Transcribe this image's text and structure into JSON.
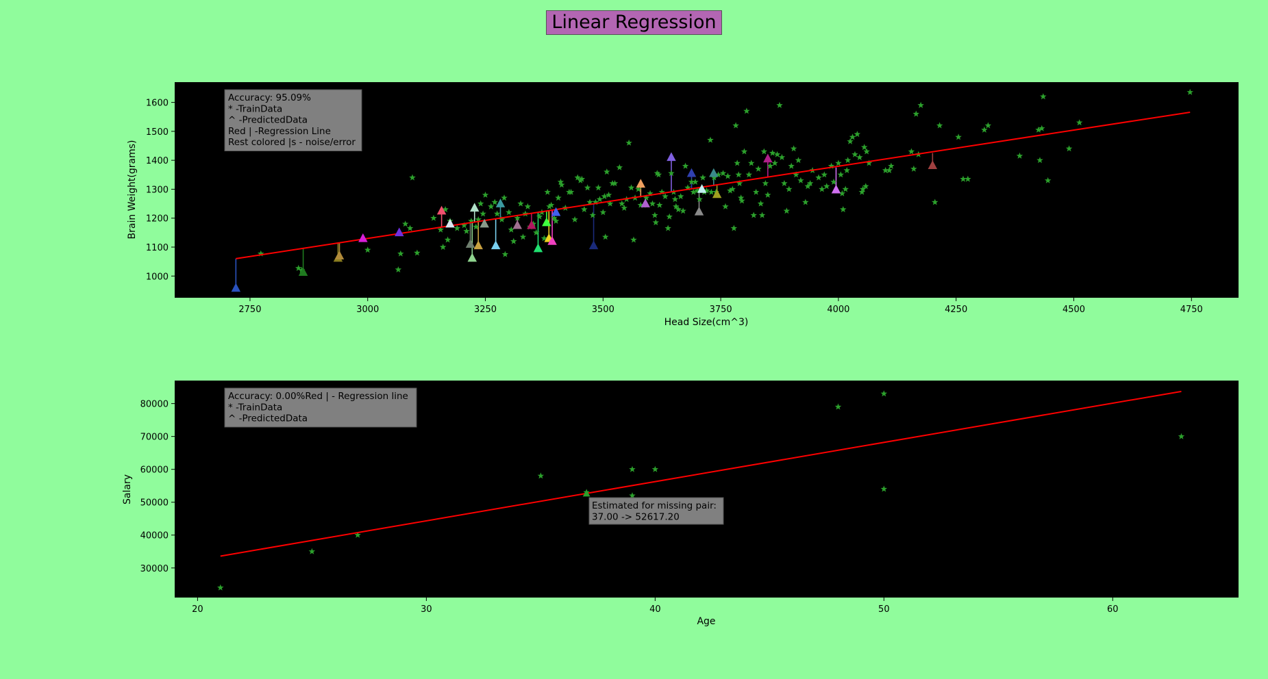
{
  "figure": {
    "title": "Linear Regression",
    "background": "#90fc9c",
    "title_box_color": "#b366b3"
  },
  "chart_data": [
    {
      "type": "scatter",
      "xlabel": "Head Size(cm^3)",
      "ylabel": "Brain Weight(grams)",
      "xlim": [
        2590,
        4850
      ],
      "ylim": [
        925,
        1670
      ],
      "xticks": [
        2750,
        3000,
        3250,
        3500,
        3750,
        4000,
        4250,
        4500,
        4750
      ],
      "yticks": [
        1000,
        1100,
        1200,
        1300,
        1400,
        1500,
        1600
      ],
      "plot_background": "#000000",
      "legend_position": "top-left",
      "legend_lines": [
        "Accuracy: 95.09%",
        "*  -TrainData",
        "^ -PredictedData",
        "Red | -Regression Line",
        "Rest colored |s - noise/error"
      ],
      "regression_line": {
        "color": "#ff0000",
        "points": [
          [
            2720,
            1060
          ],
          [
            4747,
            1566
          ]
        ]
      },
      "train_marker_color": "#2ca02c",
      "train": [
        [
          2773,
          1077
        ],
        [
          2853,
          1027
        ],
        [
          2860,
          1020
        ],
        [
          3000,
          1090
        ],
        [
          3070,
          1077
        ],
        [
          3065,
          1022
        ],
        [
          3080,
          1180
        ],
        [
          3090,
          1165
        ],
        [
          3095,
          1340
        ],
        [
          3105,
          1080
        ],
        [
          3140,
          1200
        ],
        [
          3155,
          1160
        ],
        [
          3160,
          1100
        ],
        [
          3165,
          1230
        ],
        [
          3170,
          1125
        ],
        [
          3175,
          1190
        ],
        [
          3190,
          1165
        ],
        [
          3205,
          1175
        ],
        [
          3210,
          1155
        ],
        [
          3220,
          1190
        ],
        [
          3230,
          1170
        ],
        [
          3235,
          1195
        ],
        [
          3240,
          1250
        ],
        [
          3245,
          1215
        ],
        [
          3250,
          1280
        ],
        [
          3262,
          1240
        ],
        [
          3270,
          1255
        ],
        [
          3275,
          1215
        ],
        [
          3285,
          1195
        ],
        [
          3290,
          1270
        ],
        [
          3292,
          1075
        ],
        [
          3300,
          1220
        ],
        [
          3305,
          1160
        ],
        [
          3310,
          1120
        ],
        [
          3318,
          1200
        ],
        [
          3325,
          1250
        ],
        [
          3330,
          1135
        ],
        [
          3335,
          1215
        ],
        [
          3340,
          1240
        ],
        [
          3345,
          1170
        ],
        [
          3352,
          1180
        ],
        [
          3358,
          1150
        ],
        [
          3365,
          1205
        ],
        [
          3370,
          1220
        ],
        [
          3375,
          1130
        ],
        [
          3382,
          1290
        ],
        [
          3386,
          1240
        ],
        [
          3390,
          1245
        ],
        [
          3396,
          1200
        ],
        [
          3400,
          1190
        ],
        [
          3405,
          1270
        ],
        [
          3410,
          1325
        ],
        [
          3412,
          1315
        ],
        [
          3420,
          1235
        ],
        [
          3428,
          1290
        ],
        [
          3432,
          1290
        ],
        [
          3440,
          1195
        ],
        [
          3446,
          1340
        ],
        [
          3452,
          1330
        ],
        [
          3455,
          1335
        ],
        [
          3460,
          1230
        ],
        [
          3467,
          1305
        ],
        [
          3472,
          1255
        ],
        [
          3478,
          1210
        ],
        [
          3484,
          1255
        ],
        [
          3490,
          1305
        ],
        [
          3493,
          1265
        ],
        [
          3500,
          1220
        ],
        [
          3503,
          1275
        ],
        [
          3505,
          1135
        ],
        [
          3508,
          1360
        ],
        [
          3512,
          1280
        ],
        [
          3515,
          1250
        ],
        [
          3520,
          1320
        ],
        [
          3525,
          1320
        ],
        [
          3535,
          1375
        ],
        [
          3540,
          1250
        ],
        [
          3545,
          1235
        ],
        [
          3550,
          1265
        ],
        [
          3555,
          1460
        ],
        [
          3560,
          1305
        ],
        [
          3565,
          1125
        ],
        [
          3568,
          1270
        ],
        [
          3575,
          1300
        ],
        [
          3580,
          1245
        ],
        [
          3586,
          1245
        ],
        [
          3592,
          1270
        ],
        [
          3600,
          1285
        ],
        [
          3605,
          1250
        ],
        [
          3610,
          1210
        ],
        [
          3612,
          1185
        ],
        [
          3615,
          1355
        ],
        [
          3618,
          1350
        ],
        [
          3620,
          1245
        ],
        [
          3625,
          1290
        ],
        [
          3632,
          1275
        ],
        [
          3638,
          1165
        ],
        [
          3641,
          1205
        ],
        [
          3645,
          1355
        ],
        [
          3650,
          1290
        ],
        [
          3653,
          1265
        ],
        [
          3655,
          1240
        ],
        [
          3660,
          1230
        ],
        [
          3665,
          1275
        ],
        [
          3670,
          1225
        ],
        [
          3675,
          1380
        ],
        [
          3680,
          1305
        ],
        [
          3688,
          1325
        ],
        [
          3692,
          1290
        ],
        [
          3696,
          1325
        ],
        [
          3700,
          1295
        ],
        [
          3705,
          1265
        ],
        [
          3712,
          1340
        ],
        [
          3715,
          1290
        ],
        [
          3720,
          1295
        ],
        [
          3728,
          1470
        ],
        [
          3730,
          1290
        ],
        [
          3736,
          1340
        ],
        [
          3740,
          1290
        ],
        [
          3745,
          1350
        ],
        [
          3755,
          1355
        ],
        [
          3760,
          1240
        ],
        [
          3765,
          1345
        ],
        [
          3770,
          1295
        ],
        [
          3775,
          1300
        ],
        [
          3778,
          1165
        ],
        [
          3782,
          1520
        ],
        [
          3785,
          1390
        ],
        [
          3788,
          1350
        ],
        [
          3790,
          1320
        ],
        [
          3793,
          1270
        ],
        [
          3795,
          1260
        ],
        [
          3800,
          1430
        ],
        [
          3805,
          1570
        ],
        [
          3810,
          1350
        ],
        [
          3815,
          1390
        ],
        [
          3820,
          1210
        ],
        [
          3825,
          1290
        ],
        [
          3830,
          1370
        ],
        [
          3835,
          1250
        ],
        [
          3838,
          1210
        ],
        [
          3842,
          1430
        ],
        [
          3845,
          1320
        ],
        [
          3850,
          1280
        ],
        [
          3855,
          1380
        ],
        [
          3860,
          1425
        ],
        [
          3865,
          1390
        ],
        [
          3870,
          1420
        ],
        [
          3875,
          1590
        ],
        [
          3880,
          1410
        ],
        [
          3885,
          1320
        ],
        [
          3890,
          1225
        ],
        [
          3895,
          1300
        ],
        [
          3900,
          1380
        ],
        [
          3905,
          1440
        ],
        [
          3910,
          1350
        ],
        [
          3915,
          1400
        ],
        [
          3920,
          1330
        ],
        [
          3930,
          1255
        ],
        [
          3935,
          1310
        ],
        [
          3940,
          1320
        ],
        [
          3945,
          1365
        ],
        [
          3958,
          1340
        ],
        [
          3965,
          1300
        ],
        [
          3970,
          1350
        ],
        [
          3975,
          1310
        ],
        [
          3985,
          1380
        ],
        [
          3990,
          1325
        ],
        [
          4000,
          1390
        ],
        [
          4005,
          1350
        ],
        [
          4008,
          1285
        ],
        [
          4010,
          1230
        ],
        [
          4015,
          1300
        ],
        [
          4018,
          1365
        ],
        [
          4020,
          1400
        ],
        [
          4025,
          1465
        ],
        [
          4030,
          1480
        ],
        [
          4035,
          1420
        ],
        [
          4040,
          1490
        ],
        [
          4045,
          1410
        ],
        [
          4050,
          1290
        ],
        [
          4052,
          1300
        ],
        [
          4055,
          1445
        ],
        [
          4058,
          1310
        ],
        [
          4060,
          1430
        ],
        [
          4065,
          1390
        ],
        [
          4100,
          1365
        ],
        [
          4108,
          1365
        ],
        [
          4112,
          1380
        ],
        [
          4155,
          1430
        ],
        [
          4160,
          1370
        ],
        [
          4165,
          1560
        ],
        [
          4170,
          1420
        ],
        [
          4175,
          1590
        ],
        [
          4205,
          1255
        ],
        [
          4215,
          1520
        ],
        [
          4255,
          1480
        ],
        [
          4265,
          1335
        ],
        [
          4275,
          1335
        ],
        [
          4310,
          1505
        ],
        [
          4318,
          1520
        ],
        [
          4385,
          1415
        ],
        [
          4425,
          1505
        ],
        [
          4428,
          1400
        ],
        [
          4432,
          1510
        ],
        [
          4435,
          1620
        ],
        [
          4445,
          1330
        ],
        [
          4490,
          1440
        ],
        [
          4512,
          1530
        ],
        [
          4747,
          1635
        ]
      ],
      "predicted": [
        [
          2720,
          958,
          1060,
          "#2a52be"
        ],
        [
          2863,
          1013,
          1096,
          "#1f7a1f"
        ],
        [
          2937,
          1062,
          1114,
          "#8b7e1f"
        ],
        [
          2940,
          1070,
          1114,
          "#b08a3a"
        ],
        [
          2990,
          1130,
          1130,
          "#d81fd8"
        ],
        [
          3067,
          1150,
          1150,
          "#7030e0"
        ],
        [
          3157,
          1225,
          1168,
          "#f0506e"
        ],
        [
          3175,
          1180,
          1175,
          "#d8e8f0"
        ],
        [
          3218,
          1110,
          1185,
          "#6e7e6e"
        ],
        [
          3222,
          1062,
          1185,
          "#8fd48f"
        ],
        [
          3227,
          1235,
          1187,
          "#b0e0c8"
        ],
        [
          3235,
          1105,
          1190,
          "#c8a040"
        ],
        [
          3248,
          1180,
          1192,
          "#8a9a8a"
        ],
        [
          3272,
          1105,
          1198,
          "#7ad0f0"
        ],
        [
          3282,
          1250,
          1200,
          "#3c9aa0"
        ],
        [
          3318,
          1175,
          1210,
          "#a07090"
        ],
        [
          3348,
          1175,
          1216,
          "#b01860"
        ],
        [
          3362,
          1095,
          1220,
          "#20e070"
        ],
        [
          3380,
          1185,
          1225,
          "#40ff40"
        ],
        [
          3385,
          1130,
          1225,
          "#f0d020"
        ],
        [
          3392,
          1120,
          1228,
          "#f040c0"
        ],
        [
          3400,
          1220,
          1230,
          "#4060f0"
        ],
        [
          3480,
          1105,
          1248,
          "#1a2a7a"
        ],
        [
          3580,
          1318,
          1272,
          "#f0a060"
        ],
        [
          3590,
          1250,
          1276,
          "#b060d0"
        ],
        [
          3645,
          1410,
          1290,
          "#8060e0"
        ],
        [
          3688,
          1355,
          1300,
          "#3040b0"
        ],
        [
          3704,
          1222,
          1305,
          "#8a8a8a"
        ],
        [
          3710,
          1300,
          1306,
          "#c0f0f0"
        ],
        [
          3735,
          1355,
          1313,
          "#3a8a8a"
        ],
        [
          3742,
          1282,
          1313,
          "#a0a020"
        ],
        [
          3850,
          1405,
          1340,
          "#b0208a"
        ],
        [
          3995,
          1298,
          1375,
          "#d070f0"
        ],
        [
          4200,
          1382,
          1425,
          "#a04040"
        ]
      ]
    },
    {
      "type": "scatter",
      "xlabel": "Age",
      "ylabel": "Salary",
      "xlim": [
        19,
        65.5
      ],
      "ylim": [
        21000,
        87000
      ],
      "xticks": [
        20,
        30,
        40,
        50,
        60
      ],
      "yticks": [
        30000,
        40000,
        50000,
        60000,
        70000,
        80000
      ],
      "plot_background": "#000000",
      "legend_position": "top-left",
      "legend_lines": [
        "Accuracy: 0.00%Red | - Regression line",
        "* -TrainData",
        "^ -PredictedData"
      ],
      "annotation_lines": [
        "Estimated for missing pair:",
        "37.00 -> 52617.20"
      ],
      "regression_line": {
        "color": "#ff0000",
        "points": [
          [
            21,
            33600
          ],
          [
            63,
            83700
          ]
        ]
      },
      "train_marker_color": "#2ca02c",
      "train": [
        [
          21,
          24000
        ],
        [
          25,
          35000
        ],
        [
          27,
          40000
        ],
        [
          35,
          58000
        ],
        [
          37,
          53000
        ],
        [
          39,
          60000
        ],
        [
          39,
          52000
        ],
        [
          40,
          60000
        ],
        [
          48,
          79000
        ],
        [
          50,
          83000
        ],
        [
          50,
          54000
        ],
        [
          63,
          70000
        ]
      ],
      "predicted": [
        [
          37,
          52617.2,
          52617.2,
          "#2ca02c"
        ]
      ]
    }
  ]
}
